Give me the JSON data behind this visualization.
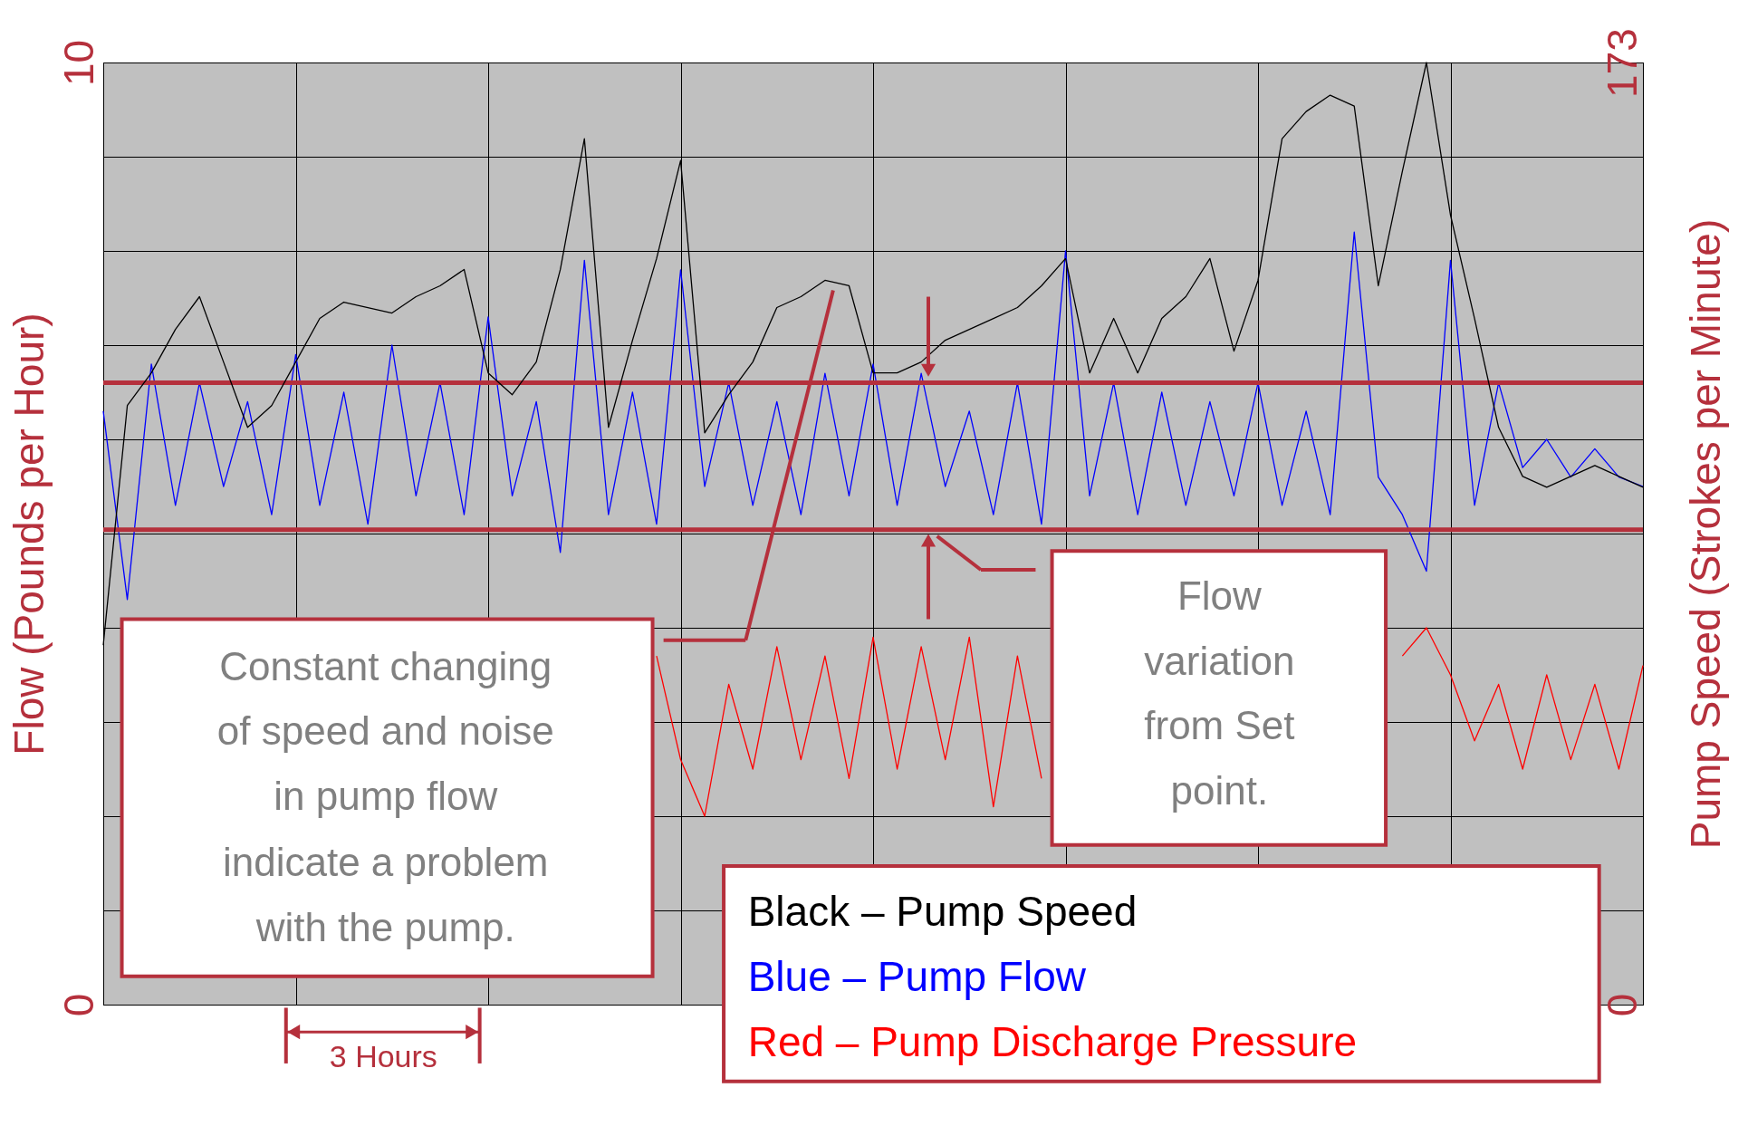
{
  "chart_data": {
    "type": "line",
    "ylabel": "Flow (Pounds per Hour)",
    "y2label": "Pump Speed (Strokes per Minute)",
    "categories": [
      null,
      null,
      null,
      null,
      null,
      null,
      null,
      null,
      null,
      null,
      null,
      null,
      null,
      null,
      null,
      null,
      null,
      null,
      null,
      null,
      null,
      null,
      null,
      null,
      null,
      null,
      null,
      null,
      null,
      null,
      null,
      null,
      null,
      null,
      null,
      null,
      null,
      null,
      null,
      null,
      null,
      null,
      null,
      null,
      null,
      null,
      null,
      null,
      null,
      null,
      null,
      null,
      null,
      null,
      null,
      null,
      null,
      null,
      null,
      null,
      null,
      null,
      null,
      null,
      null
    ],
    "ylim": [
      0,
      10
    ],
    "yticks": [
      0,
      {
        "value": 1,
        "label": null
      },
      {
        "value": 2,
        "label": null
      },
      {
        "value": 3,
        "label": null
      },
      {
        "value": 4,
        "label": null
      },
      {
        "value": 5,
        "label": null
      },
      {
        "value": 6,
        "label": null
      },
      {
        "value": 7,
        "label": null
      },
      {
        "value": 8,
        "label": null
      },
      {
        "value": 9,
        "label": null
      },
      10
    ],
    "y2lim": [
      0,
      173
    ],
    "y2ticks": [
      0,
      173
    ],
    "grid": true,
    "legend": "bottom right",
    "series": [
      {
        "name": "Black – Pump Speed",
        "color": "#000000",
        "axis": "y2",
        "values": [
          66,
          110,
          116,
          124,
          130,
          118,
          106,
          110,
          118,
          126,
          129,
          128,
          127,
          130,
          132,
          135,
          116,
          112,
          118,
          135,
          159,
          106,
          122,
          137,
          155,
          105,
          112,
          118,
          128,
          130,
          133,
          132,
          116,
          116,
          118,
          122,
          124,
          126,
          128,
          132,
          137,
          116,
          126,
          116,
          126,
          130,
          137,
          120,
          133,
          159,
          164,
          167,
          165,
          132,
          153,
          173,
          145,
          126,
          106,
          97,
          95,
          97,
          99,
          97,
          95
        ]
      },
      {
        "name": "Blue – Pump Flow",
        "color": "#0000ff",
        "values": [
          6.3,
          4.3,
          6.8,
          5.3,
          6.6,
          5.5,
          6.4,
          5.2,
          6.9,
          5.3,
          6.5,
          5.1,
          7.0,
          5.4,
          6.6,
          5.2,
          7.3,
          5.4,
          6.4,
          4.8,
          7.9,
          5.2,
          6.5,
          5.1,
          7.8,
          5.5,
          6.6,
          5.3,
          6.4,
          5.2,
          6.7,
          5.4,
          6.8,
          5.3,
          6.7,
          5.5,
          6.3,
          5.2,
          6.6,
          5.1,
          8.0,
          5.4,
          6.6,
          5.2,
          6.5,
          5.3,
          6.4,
          5.4,
          6.6,
          5.3,
          6.3,
          5.2,
          8.2,
          5.6,
          5.2,
          4.6,
          7.9,
          5.3,
          6.6,
          5.7,
          6.0,
          5.6,
          5.9,
          5.6,
          5.5
        ]
      },
      {
        "name": "Red – Pump Discharge Pressure",
        "color": "#ff0000",
        "values": [
          null,
          null,
          null,
          null,
          null,
          null,
          null,
          null,
          null,
          null,
          null,
          null,
          null,
          null,
          null,
          null,
          null,
          null,
          null,
          null,
          null,
          null,
          null,
          3.7,
          2.6,
          2.0,
          3.4,
          2.5,
          3.8,
          2.6,
          3.7,
          2.4,
          3.9,
          2.5,
          3.8,
          2.6,
          3.9,
          2.1,
          3.7,
          2.4,
          null,
          null,
          null,
          null,
          null,
          null,
          null,
          null,
          null,
          null,
          null,
          null,
          null,
          null,
          3.7,
          4.0,
          3.5,
          2.8,
          3.4,
          2.5,
          3.5,
          2.6,
          3.4,
          2.5,
          3.6
        ]
      }
    ],
    "ref_lines": [
      {
        "axis": "y",
        "value": 6.6,
        "color": "#b5303c"
      },
      {
        "axis": "y",
        "value": 5.04,
        "color": "#b5303c"
      }
    ],
    "annotations": [
      "Constant changing of speed and noise in pump flow indicate a problem with the pump.",
      "Flow variation from Set point.",
      "3 Hours"
    ]
  }
}
